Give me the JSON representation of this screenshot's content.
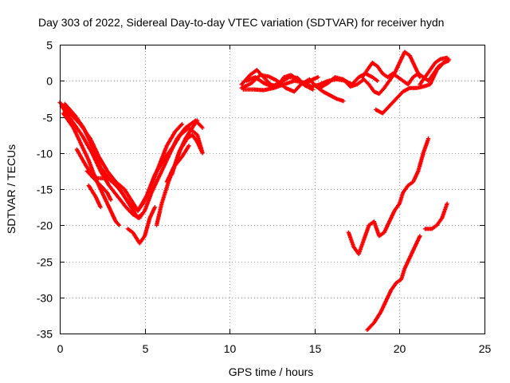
{
  "chart_data": {
    "type": "scatter",
    "title": "Day 303 of 2022, Sidereal Day-to-day VTEC variation (SDTVAR) for receiver hydn",
    "xlabel": "GPS time / hours",
    "ylabel": "SDTVAR / TECUs",
    "xlim": [
      0,
      25
    ],
    "ylim": [
      -35,
      5
    ],
    "xticks": [
      0,
      5,
      10,
      15,
      20,
      25
    ],
    "yticks": [
      5,
      0,
      -5,
      -10,
      -15,
      -20,
      -25,
      -30,
      -35
    ],
    "grid": true,
    "marker": "plus",
    "color": "#ff0000",
    "tracks": [
      [
        [
          0.0,
          -3.0
        ],
        [
          0.6,
          -4.5
        ],
        [
          1.2,
          -6.0
        ],
        [
          1.8,
          -8.0
        ],
        [
          2.3,
          -10.5
        ],
        [
          2.8,
          -12.5
        ],
        [
          3.3,
          -14.0
        ],
        [
          3.8,
          -15.0
        ],
        [
          4.2,
          -16.5
        ],
        [
          4.6,
          -18.0
        ],
        [
          4.9,
          -17.0
        ],
        [
          5.3,
          -15.0
        ],
        [
          5.8,
          -12.0
        ],
        [
          6.3,
          -9.0
        ],
        [
          6.8,
          -7.0
        ],
        [
          7.2,
          -6.0
        ]
      ],
      [
        [
          0.1,
          -3.5
        ],
        [
          0.7,
          -5.5
        ],
        [
          1.3,
          -7.5
        ],
        [
          1.9,
          -10.0
        ],
        [
          2.4,
          -12.5
        ],
        [
          2.9,
          -14.5
        ],
        [
          3.4,
          -16.0
        ],
        [
          3.9,
          -17.5
        ],
        [
          4.3,
          -18.5
        ],
        [
          4.7,
          -19.0
        ],
        [
          5.0,
          -18.0
        ],
        [
          5.4,
          -15.5
        ],
        [
          5.9,
          -13.0
        ],
        [
          6.4,
          -10.5
        ],
        [
          6.9,
          -8.0
        ],
        [
          7.4,
          -6.5
        ],
        [
          8.0,
          -5.5
        ],
        [
          8.4,
          -6.5
        ]
      ],
      [
        [
          0.2,
          -4.5
        ],
        [
          0.8,
          -6.5
        ],
        [
          1.3,
          -9.0
        ],
        [
          1.7,
          -11.0
        ],
        [
          2.1,
          -13.5
        ],
        [
          2.5,
          -15.5
        ],
        [
          2.8,
          -17.0
        ],
        [
          3.1,
          -18.5
        ],
        [
          3.3,
          -19.5
        ],
        [
          3.5,
          -20.0
        ]
      ],
      [
        [
          1.0,
          -9.5
        ],
        [
          1.6,
          -12.0
        ],
        [
          2.2,
          -13.5
        ],
        [
          2.8,
          -13.5
        ],
        [
          3.4,
          -14.5
        ],
        [
          3.8,
          -16.0
        ],
        [
          4.2,
          -17.5
        ],
        [
          4.6,
          -19.0
        ],
        [
          4.8,
          -18.5
        ]
      ],
      [
        [
          0.3,
          -3.2
        ],
        [
          0.9,
          -4.8
        ],
        [
          1.4,
          -6.5
        ],
        [
          1.9,
          -9.0
        ],
        [
          2.4,
          -12.0
        ],
        [
          2.9,
          -13.5
        ],
        [
          3.5,
          -15.0
        ],
        [
          4.1,
          -17.0
        ],
        [
          4.6,
          -18.0
        ],
        [
          5.1,
          -16.0
        ],
        [
          5.6,
          -13.0
        ],
        [
          6.1,
          -11.0
        ],
        [
          6.7,
          -9.0
        ],
        [
          7.1,
          -7.5
        ],
        [
          7.6,
          -6.5
        ],
        [
          8.1,
          -7.5
        ],
        [
          8.4,
          -10.0
        ]
      ],
      [
        [
          1.6,
          -12.5
        ],
        [
          2.0,
          -13.5
        ],
        [
          2.4,
          -14.5
        ],
        [
          2.8,
          -15.5
        ],
        [
          3.0,
          -16.5
        ]
      ],
      [
        [
          1.7,
          -14.5
        ],
        [
          2.1,
          -16.0
        ],
        [
          2.4,
          -17.5
        ]
      ],
      [
        [
          4.0,
          -20.5
        ],
        [
          4.3,
          -21.0
        ],
        [
          4.7,
          -22.5
        ],
        [
          5.0,
          -21.5
        ],
        [
          5.3,
          -19.0
        ],
        [
          5.6,
          -17.5
        ]
      ],
      [
        [
          5.7,
          -20.0
        ],
        [
          6.0,
          -17.0
        ],
        [
          6.4,
          -14.0
        ],
        [
          6.8,
          -11.5
        ],
        [
          7.1,
          -9.5
        ],
        [
          7.5,
          -8.0
        ],
        [
          7.8,
          -7.5
        ],
        [
          8.1,
          -8.5
        ],
        [
          8.4,
          -10.0
        ]
      ],
      [
        [
          6.3,
          -14.0
        ],
        [
          6.7,
          -12.0
        ],
        [
          7.2,
          -10.5
        ],
        [
          7.6,
          -9.0
        ]
      ],
      [
        [
          6.6,
          -13.0
        ],
        [
          7.0,
          -10.0
        ],
        [
          7.4,
          -8.0
        ],
        [
          7.8,
          -6.5
        ],
        [
          8.1,
          -5.5
        ]
      ],
      [
        [
          10.7,
          -0.5
        ],
        [
          11.2,
          0.8
        ],
        [
          11.6,
          1.5
        ],
        [
          12.0,
          0.5
        ],
        [
          12.4,
          -0.5
        ],
        [
          12.8,
          -0.8
        ],
        [
          13.2,
          0.5
        ],
        [
          13.6,
          0.8
        ],
        [
          14.0,
          0.2
        ],
        [
          14.4,
          -0.5
        ],
        [
          14.9,
          0.2
        ],
        [
          15.2,
          0.5
        ]
      ],
      [
        [
          10.7,
          -1.0
        ],
        [
          11.3,
          -0.3
        ],
        [
          11.8,
          0.8
        ],
        [
          12.3,
          0.6
        ],
        [
          12.8,
          0.0
        ],
        [
          13.3,
          -1.0
        ],
        [
          13.8,
          -1.5
        ],
        [
          14.2,
          -0.5
        ],
        [
          14.7,
          0.2
        ],
        [
          15.1,
          -0.8
        ],
        [
          15.5,
          -1.5
        ],
        [
          15.9,
          -2.0
        ],
        [
          16.3,
          -2.5
        ],
        [
          16.7,
          -2.8
        ]
      ],
      [
        [
          10.8,
          -1.2
        ],
        [
          11.4,
          -1.2
        ],
        [
          12.0,
          -1.3
        ],
        [
          12.6,
          -1.0
        ],
        [
          13.2,
          -0.5
        ],
        [
          13.8,
          0.0
        ],
        [
          14.3,
          -0.2
        ],
        [
          14.8,
          -0.8
        ],
        [
          15.3,
          -0.5
        ],
        [
          15.8,
          0.0
        ],
        [
          16.3,
          0.2
        ],
        [
          16.8,
          0.0
        ],
        [
          17.2,
          -0.5
        ],
        [
          17.6,
          0.5
        ],
        [
          18.0,
          1.0
        ],
        [
          18.4,
          0.5
        ],
        [
          18.7,
          0.0
        ]
      ],
      [
        [
          11.0,
          0.0
        ],
        [
          11.5,
          0.5
        ],
        [
          12.0,
          -0.3
        ],
        [
          12.5,
          -0.8
        ],
        [
          13.0,
          -0.2
        ],
        [
          13.5,
          0.5
        ],
        [
          14.0,
          0.4
        ],
        [
          14.4,
          -0.6
        ],
        [
          14.9,
          -1.2
        ]
      ],
      [
        [
          15.3,
          -1.0
        ],
        [
          15.8,
          -0.3
        ],
        [
          16.2,
          0.5
        ],
        [
          16.7,
          0.2
        ],
        [
          17.1,
          -0.8
        ],
        [
          17.5,
          -0.5
        ],
        [
          17.9,
          0.2
        ],
        [
          18.2,
          -0.5
        ],
        [
          18.5,
          -1.5
        ],
        [
          18.8,
          -1.8
        ],
        [
          19.1,
          -1.0
        ],
        [
          19.4,
          0.0
        ],
        [
          19.7,
          1.0
        ],
        [
          20.0,
          2.5
        ],
        [
          20.3,
          4.0
        ],
        [
          20.6,
          3.5
        ],
        [
          20.9,
          2.0
        ],
        [
          21.2,
          0.5
        ]
      ],
      [
        [
          18.6,
          -4.0
        ],
        [
          19.0,
          -4.5
        ],
        [
          19.4,
          -3.5
        ],
        [
          19.8,
          -2.5
        ],
        [
          20.2,
          -1.5
        ],
        [
          20.6,
          -1.0
        ],
        [
          21.0,
          -1.0
        ],
        [
          21.4,
          -0.8
        ],
        [
          21.8,
          -0.5
        ],
        [
          22.2,
          1.5
        ],
        [
          22.6,
          2.5
        ],
        [
          22.9,
          3.0
        ]
      ],
      [
        [
          17.8,
          0.5
        ],
        [
          18.1,
          1.5
        ],
        [
          18.4,
          2.5
        ],
        [
          18.7,
          2.0
        ],
        [
          19.0,
          1.0
        ],
        [
          19.3,
          0.5
        ],
        [
          19.6,
          1.0
        ],
        [
          19.9,
          0.5
        ],
        [
          20.2,
          0.0
        ],
        [
          20.5,
          -0.5
        ],
        [
          20.8,
          0.5
        ],
        [
          21.1,
          1.0
        ],
        [
          21.4,
          0.5
        ],
        [
          21.7,
          0.0
        ],
        [
          22.0,
          1.0
        ],
        [
          22.3,
          2.0
        ],
        [
          22.6,
          2.5
        ],
        [
          22.9,
          2.8
        ]
      ],
      [
        [
          21.2,
          -0.5
        ],
        [
          21.5,
          0.5
        ],
        [
          21.8,
          1.5
        ],
        [
          22.1,
          2.5
        ],
        [
          22.4,
          3.0
        ],
        [
          22.8,
          3.2
        ]
      ],
      [
        [
          17.0,
          -21.0
        ],
        [
          17.3,
          -23.0
        ],
        [
          17.6,
          -24.0
        ],
        [
          17.9,
          -22.0
        ],
        [
          18.2,
          -20.0
        ],
        [
          18.5,
          -19.5
        ],
        [
          18.8,
          -21.5
        ],
        [
          19.1,
          -21.0
        ],
        [
          19.4,
          -19.5
        ],
        [
          19.7,
          -18.0
        ],
        [
          20.0,
          -17.0
        ],
        [
          20.2,
          -15.5
        ],
        [
          20.5,
          -14.5
        ],
        [
          20.8,
          -14.0
        ],
        [
          21.1,
          -12.5
        ],
        [
          21.4,
          -10.0
        ],
        [
          21.7,
          -8.0
        ]
      ],
      [
        [
          18.1,
          -34.5
        ],
        [
          18.5,
          -33.5
        ],
        [
          18.9,
          -32.0
        ],
        [
          19.2,
          -30.5
        ],
        [
          19.5,
          -29.0
        ],
        [
          19.8,
          -28.0
        ],
        [
          20.1,
          -27.5
        ],
        [
          20.3,
          -26.0
        ],
        [
          20.6,
          -24.5
        ],
        [
          20.9,
          -23.0
        ],
        [
          21.2,
          -21.5
        ]
      ],
      [
        [
          21.5,
          -20.5
        ],
        [
          21.9,
          -20.5
        ],
        [
          22.2,
          -20.0
        ],
        [
          22.5,
          -19.0
        ],
        [
          22.8,
          -17.0
        ]
      ]
    ]
  }
}
